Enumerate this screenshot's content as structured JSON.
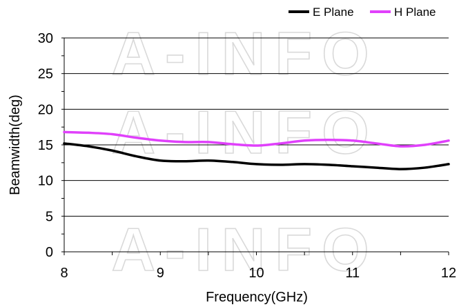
{
  "watermark": "A-INFO",
  "chart_data": {
    "type": "line",
    "xlabel": "Frequency(GHz)",
    "ylabel": "Beamwidth(deg)",
    "xlim": [
      8,
      12
    ],
    "ylim": [
      0,
      30
    ],
    "xticks": [
      8,
      9,
      10,
      11,
      12
    ],
    "yticks": [
      0,
      5,
      10,
      15,
      20,
      25,
      30
    ],
    "grid": "horizontal major",
    "legend_position": "top-right",
    "series": [
      {
        "name": "E Plane",
        "color": "#000000",
        "x": [
          8.0,
          8.25,
          8.5,
          8.75,
          9.0,
          9.25,
          9.5,
          9.75,
          10.0,
          10.25,
          10.5,
          10.75,
          11.0,
          11.25,
          11.5,
          11.75,
          12.0
        ],
        "y": [
          15.2,
          14.8,
          14.2,
          13.4,
          12.8,
          12.7,
          12.8,
          12.6,
          12.3,
          12.2,
          12.3,
          12.2,
          12.0,
          11.8,
          11.6,
          11.8,
          12.3
        ]
      },
      {
        "name": "H Plane",
        "color": "#e040fb",
        "x": [
          8.0,
          8.25,
          8.5,
          8.75,
          9.0,
          9.25,
          9.5,
          9.75,
          10.0,
          10.25,
          10.5,
          10.75,
          11.0,
          11.25,
          11.5,
          11.75,
          12.0
        ],
        "y": [
          16.8,
          16.7,
          16.5,
          16.0,
          15.6,
          15.4,
          15.4,
          15.1,
          14.9,
          15.2,
          15.6,
          15.7,
          15.6,
          15.2,
          14.8,
          15.0,
          15.6
        ]
      }
    ]
  }
}
